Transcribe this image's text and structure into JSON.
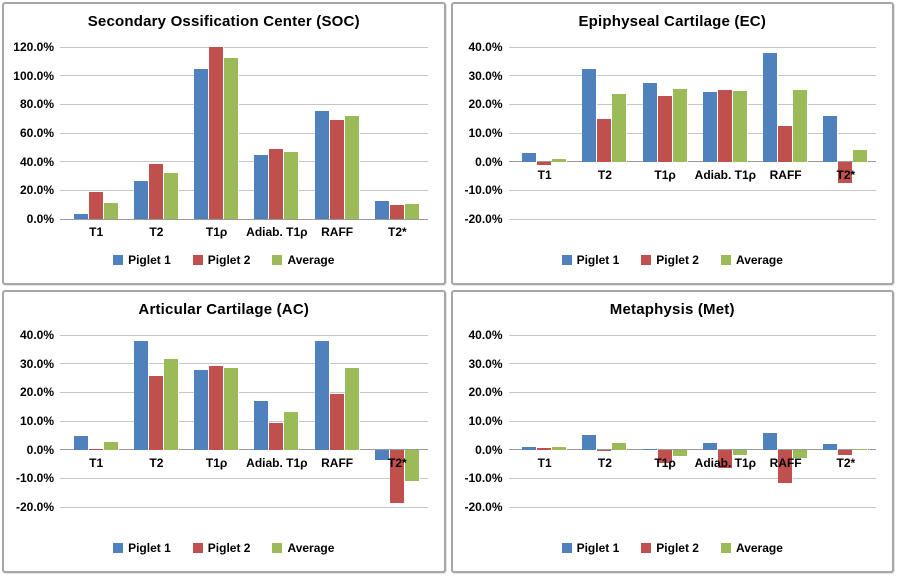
{
  "colors": {
    "piglet1": "#4F81BD",
    "piglet2": "#C0504D",
    "average": "#9BBB59",
    "gridline": "#C6C6C6",
    "zero_line": "#999999",
    "panel_border": "#A6A6A6",
    "text": "#000000"
  },
  "legend_labels": [
    "Piglet 1",
    "Piglet 2",
    "Average"
  ],
  "chart_data": [
    {
      "type": "bar",
      "title": "Secondary Ossification Center (SOC)",
      "categories": [
        "T1",
        "T2",
        "T1ρ",
        "Adiab. T1ρ",
        "RAFF",
        "T2*"
      ],
      "series": [
        {
          "name": "Piglet 1",
          "color": "#4F81BD",
          "values": [
            3.3,
            26.3,
            105.0,
            45.0,
            75.2,
            12.6
          ]
        },
        {
          "name": "Piglet 2",
          "color": "#C0504D",
          "values": [
            18.8,
            38.4,
            120.0,
            48.9,
            68.9,
            9.5
          ]
        },
        {
          "name": "Average",
          "color": "#9BBB59",
          "values": [
            11.2,
            32.2,
            112.3,
            46.9,
            72.0,
            10.7
          ]
        }
      ],
      "ylim": [
        0,
        120
      ],
      "ytick_step": 20,
      "ytick_format": "percent_one_decimal",
      "grid": true,
      "legend_position": "bottom"
    },
    {
      "type": "bar",
      "title": "Epiphyseal Cartilage (EC)",
      "categories": [
        "T1",
        "T2",
        "T1ρ",
        "Adiab. T1ρ",
        "RAFF",
        "T2*"
      ],
      "series": [
        {
          "name": "Piglet 1",
          "color": "#4F81BD",
          "values": [
            2.9,
            32.3,
            27.6,
            24.4,
            37.9,
            16.1
          ]
        },
        {
          "name": "Piglet 2",
          "color": "#C0504D",
          "values": [
            -1.2,
            14.9,
            22.9,
            24.9,
            12.5,
            -7.4
          ]
        },
        {
          "name": "Average",
          "color": "#9BBB59",
          "values": [
            0.8,
            23.6,
            25.3,
            24.7,
            25.1,
            4.2
          ]
        }
      ],
      "ylim": [
        -20,
        40
      ],
      "ytick_step": 10,
      "ytick_format": "percent_one_decimal",
      "grid": true,
      "legend_position": "bottom"
    },
    {
      "type": "bar",
      "title": "Articular Cartilage (AC)",
      "categories": [
        "T1",
        "T2",
        "T1ρ",
        "Adiab. T1ρ",
        "RAFF",
        "T2*"
      ],
      "series": [
        {
          "name": "Piglet 1",
          "color": "#4F81BD",
          "values": [
            4.9,
            37.9,
            27.9,
            17.1,
            37.9,
            -3.7
          ]
        },
        {
          "name": "Piglet 2",
          "color": "#C0504D",
          "values": [
            0.4,
            25.7,
            29.3,
            9.3,
            19.3,
            -18.5
          ]
        },
        {
          "name": "Average",
          "color": "#9BBB59",
          "values": [
            2.6,
            31.8,
            28.5,
            13.3,
            28.5,
            -11.1
          ]
        }
      ],
      "ylim": [
        -20,
        40
      ],
      "ytick_step": 10,
      "ytick_format": "percent_one_decimal",
      "grid": true,
      "legend_position": "bottom"
    },
    {
      "type": "bar",
      "title": "Metaphysis (Met)",
      "categories": [
        "T1",
        "T2",
        "T1ρ",
        "Adiab. T1ρ",
        "RAFF",
        "T2*"
      ],
      "series": [
        {
          "name": "Piglet 1",
          "color": "#4F81BD",
          "values": [
            0.8,
            5.0,
            0.4,
            2.5,
            5.9,
            2.0
          ]
        },
        {
          "name": "Piglet 2",
          "color": "#C0504D",
          "values": [
            0.7,
            -0.6,
            -4.6,
            -6.4,
            -11.8,
            -1.8
          ]
        },
        {
          "name": "Average",
          "color": "#9BBB59",
          "values": [
            0.8,
            2.4,
            -2.3,
            -2.0,
            -2.9,
            0.1
          ]
        }
      ],
      "ylim": [
        -20,
        40
      ],
      "ytick_step": 10,
      "ytick_format": "percent_one_decimal",
      "grid": true,
      "legend_position": "bottom"
    }
  ]
}
